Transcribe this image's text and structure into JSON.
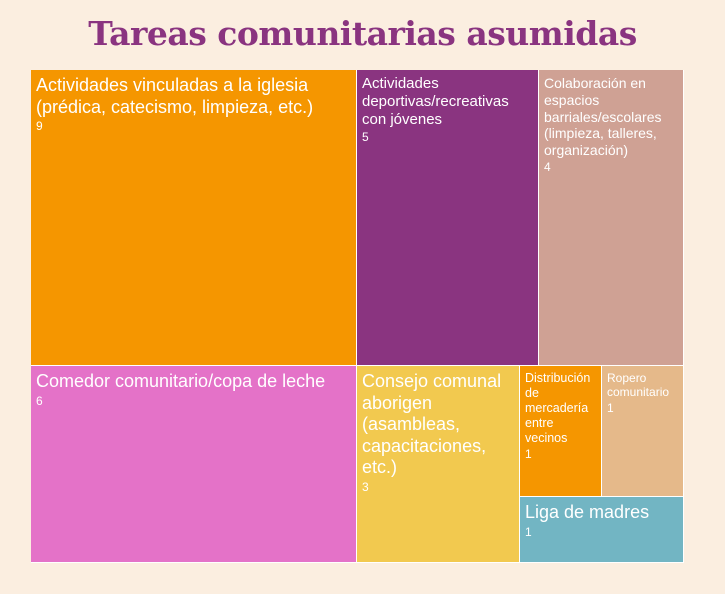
{
  "chart_data": {
    "type": "treemap",
    "title": "Tareas comunitarias asumidas",
    "items": [
      {
        "label": "Actividades vinculadas a la iglesia (prédica, catecismo, limpieza, etc.)",
        "value": 9,
        "color": "#f59600"
      },
      {
        "label": "Actividades deportivas/recreativas con jóvenes",
        "value": 5,
        "color": "#8a3480"
      },
      {
        "label": "Colaboración en espacios barriales/escolares (limpieza, talleres, organización)",
        "value": 4,
        "color": "#cfa194"
      },
      {
        "label": "Comedor comunitario/copa de leche",
        "value": 6,
        "color": "#e472c8"
      },
      {
        "label": "Consejo comunal aborigen (asambleas, capacitaciones, etc.)",
        "value": 3,
        "color": "#f2c94f"
      },
      {
        "label": "Distribución de mercadería entre vecinos",
        "value": 1,
        "color": "#f59600"
      },
      {
        "label": "Ropero comunitario",
        "value": 1,
        "color": "#e5b98a"
      },
      {
        "label": "Liga de madres",
        "value": 1,
        "color": "#72b5c3"
      }
    ]
  }
}
